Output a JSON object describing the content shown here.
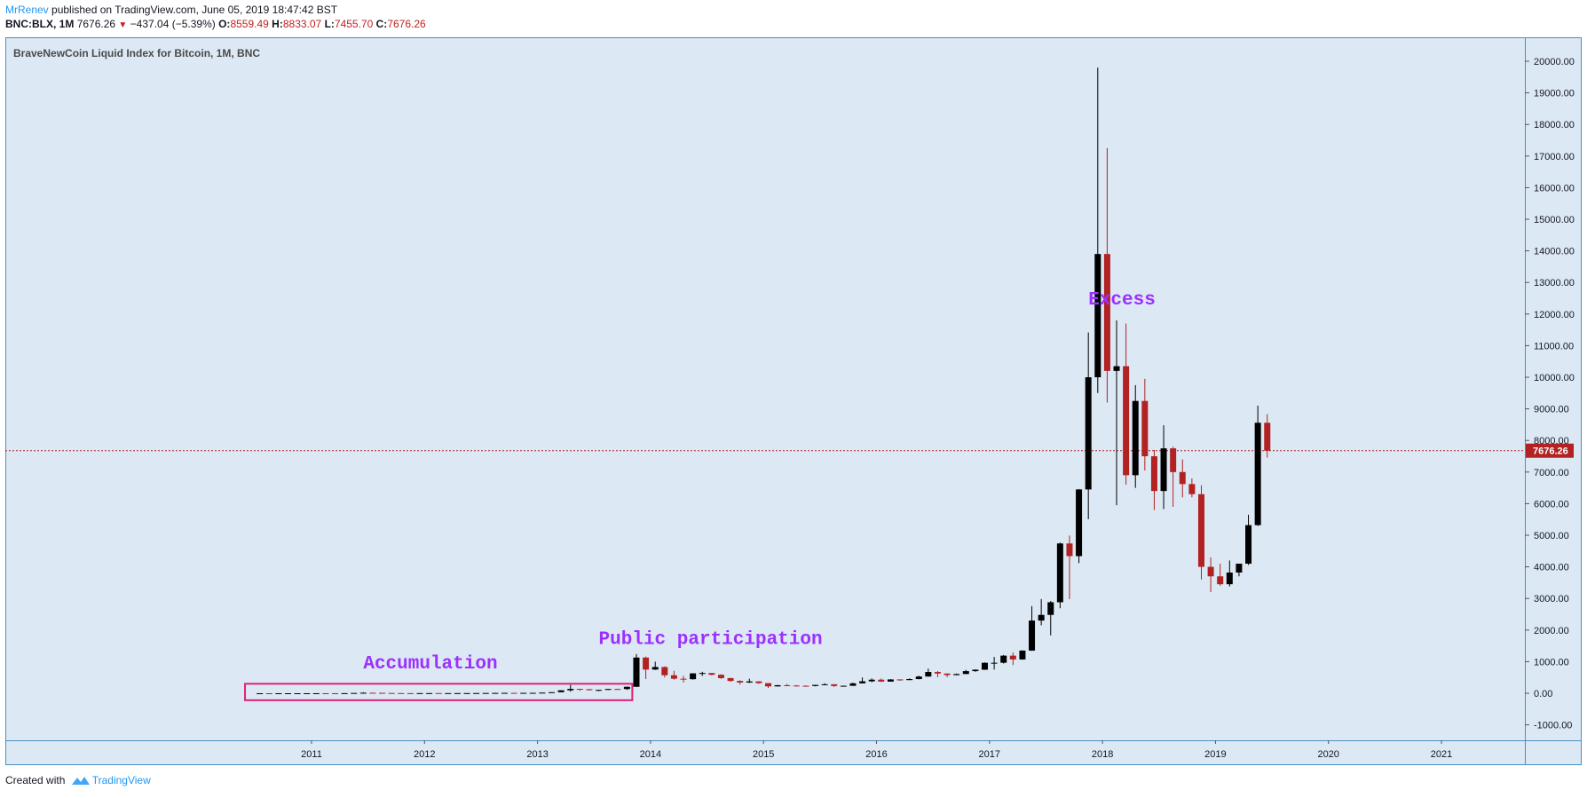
{
  "header": {
    "author": "MrRenev",
    "published": "published on TradingView.com, June 05, 2019 18:47:42 BST",
    "symbol": "BNC:BLX, 1M",
    "last": "7676.26",
    "arrow": "▼",
    "change": "−437.04 (−5.39%)",
    "o_label": "O:",
    "o": "8559.49",
    "h_label": "H:",
    "h": "8833.07",
    "l_label": "L:",
    "l": "7455.70",
    "c_label": "C:",
    "c": "7676.26"
  },
  "footer": {
    "created": "Created with",
    "brand": "TradingView"
  },
  "colors": {
    "background": "#dce8f4",
    "border": "#4a90c2",
    "up": "#000000",
    "down": "#b22222",
    "price_line": "#b22222",
    "annotation": "#9b30ff",
    "box": "#e0207a"
  },
  "chart_data": {
    "type": "candlestick",
    "title": "BraveNewCoin Liquid Index for Bitcoin, 1M, BNC",
    "ylim": [
      -1500,
      20500
    ],
    "y_ticks": [
      -1000,
      0,
      1000,
      2000,
      3000,
      4000,
      5000,
      6000,
      7000,
      8000,
      9000,
      10000,
      11000,
      12000,
      13000,
      14000,
      15000,
      16000,
      17000,
      18000,
      19000,
      20000
    ],
    "x_ticks": [
      "2011",
      "2012",
      "2013",
      "2014",
      "2015",
      "2016",
      "2017",
      "2018",
      "2019",
      "2020",
      "2021"
    ],
    "last_price": 7676.26,
    "last_price_label": "7676.26",
    "candles": [
      {
        "t": "2010-07",
        "o": 0.05,
        "h": 0.1,
        "l": 0.05,
        "c": 0.07
      },
      {
        "t": "2010-08",
        "o": 0.07,
        "h": 0.1,
        "l": 0.06,
        "c": 0.06
      },
      {
        "t": "2010-09",
        "o": 0.06,
        "h": 0.2,
        "l": 0.06,
        "c": 0.06
      },
      {
        "t": "2010-10",
        "o": 0.06,
        "h": 0.2,
        "l": 0.06,
        "c": 0.19
      },
      {
        "t": "2010-11",
        "o": 0.19,
        "h": 0.5,
        "l": 0.19,
        "c": 0.21
      },
      {
        "t": "2010-12",
        "o": 0.21,
        "h": 0.3,
        "l": 0.2,
        "c": 0.3
      },
      {
        "t": "2011-01",
        "o": 0.3,
        "h": 0.95,
        "l": 0.3,
        "c": 0.9
      },
      {
        "t": "2011-02",
        "o": 0.9,
        "h": 1.1,
        "l": 0.8,
        "c": 0.86
      },
      {
        "t": "2011-03",
        "o": 0.86,
        "h": 0.95,
        "l": 0.7,
        "c": 0.78
      },
      {
        "t": "2011-04",
        "o": 0.78,
        "h": 4,
        "l": 0.7,
        "c": 3.5
      },
      {
        "t": "2011-05",
        "o": 3.5,
        "h": 9,
        "l": 3,
        "c": 8.7
      },
      {
        "t": "2011-06",
        "o": 8.7,
        "h": 31,
        "l": 8,
        "c": 16
      },
      {
        "t": "2011-07",
        "o": 16,
        "h": 16,
        "l": 12,
        "c": 13.4
      },
      {
        "t": "2011-08",
        "o": 13.4,
        "h": 13.5,
        "l": 7,
        "c": 8.2
      },
      {
        "t": "2011-09",
        "o": 8.2,
        "h": 8.5,
        "l": 4.5,
        "c": 5.1
      },
      {
        "t": "2011-10",
        "o": 5.1,
        "h": 5.1,
        "l": 2,
        "c": 3.2
      },
      {
        "t": "2011-11",
        "o": 3.2,
        "h": 3.3,
        "l": 2,
        "c": 3.0
      },
      {
        "t": "2011-12",
        "o": 3.0,
        "h": 4.8,
        "l": 2.8,
        "c": 4.7
      },
      {
        "t": "2012-01",
        "o": 4.7,
        "h": 7.4,
        "l": 4.5,
        "c": 5.5
      },
      {
        "t": "2012-02",
        "o": 5.5,
        "h": 6.3,
        "l": 4.2,
        "c": 4.9
      },
      {
        "t": "2012-03",
        "o": 4.9,
        "h": 5.4,
        "l": 4.6,
        "c": 4.9
      },
      {
        "t": "2012-04",
        "o": 4.9,
        "h": 5.2,
        "l": 4.7,
        "c": 5.0
      },
      {
        "t": "2012-05",
        "o": 5.0,
        "h": 5.2,
        "l": 4.9,
        "c": 5.2
      },
      {
        "t": "2012-06",
        "o": 5.2,
        "h": 6.7,
        "l": 5.1,
        "c": 6.7
      },
      {
        "t": "2012-07",
        "o": 6.7,
        "h": 9.6,
        "l": 6.5,
        "c": 9.3
      },
      {
        "t": "2012-08",
        "o": 9.3,
        "h": 16,
        "l": 7.1,
        "c": 10.1
      },
      {
        "t": "2012-09",
        "o": 10.1,
        "h": 12.9,
        "l": 10,
        "c": 12.4
      },
      {
        "t": "2012-10",
        "o": 12.4,
        "h": 12.6,
        "l": 9.8,
        "c": 11.2
      },
      {
        "t": "2012-11",
        "o": 11.2,
        "h": 12.6,
        "l": 10.3,
        "c": 12.6
      },
      {
        "t": "2012-12",
        "o": 12.6,
        "h": 13.7,
        "l": 12.5,
        "c": 13.5
      },
      {
        "t": "2013-01",
        "o": 13.5,
        "h": 20.5,
        "l": 13.2,
        "c": 20.4
      },
      {
        "t": "2013-02",
        "o": 20.4,
        "h": 33.5,
        "l": 19.5,
        "c": 33.4
      },
      {
        "t": "2013-03",
        "o": 33.4,
        "h": 95,
        "l": 33,
        "c": 93
      },
      {
        "t": "2013-04",
        "o": 93,
        "h": 266,
        "l": 50,
        "c": 139
      },
      {
        "t": "2013-05",
        "o": 139,
        "h": 139,
        "l": 79,
        "c": 128
      },
      {
        "t": "2013-06",
        "o": 128,
        "h": 130,
        "l": 88,
        "c": 97
      },
      {
        "t": "2013-07",
        "o": 97,
        "h": 110,
        "l": 65,
        "c": 106
      },
      {
        "t": "2013-08",
        "o": 106,
        "h": 135,
        "l": 100,
        "c": 135
      },
      {
        "t": "2013-09",
        "o": 135,
        "h": 145,
        "l": 118,
        "c": 133
      },
      {
        "t": "2013-10",
        "o": 133,
        "h": 215,
        "l": 104,
        "c": 204
      },
      {
        "t": "2013-11",
        "o": 204,
        "h": 1240,
        "l": 200,
        "c": 1130
      },
      {
        "t": "2013-12",
        "o": 1130,
        "h": 1160,
        "l": 450,
        "c": 750
      },
      {
        "t": "2014-01",
        "o": 750,
        "h": 1000,
        "l": 740,
        "c": 830
      },
      {
        "t": "2014-02",
        "o": 830,
        "h": 850,
        "l": 500,
        "c": 570
      },
      {
        "t": "2014-03",
        "o": 570,
        "h": 710,
        "l": 430,
        "c": 460
      },
      {
        "t": "2014-04",
        "o": 460,
        "h": 550,
        "l": 340,
        "c": 445
      },
      {
        "t": "2014-05",
        "o": 445,
        "h": 630,
        "l": 430,
        "c": 630
      },
      {
        "t": "2014-06",
        "o": 630,
        "h": 680,
        "l": 550,
        "c": 640
      },
      {
        "t": "2014-07",
        "o": 640,
        "h": 645,
        "l": 565,
        "c": 585
      },
      {
        "t": "2014-08",
        "o": 585,
        "h": 600,
        "l": 455,
        "c": 480
      },
      {
        "t": "2014-09",
        "o": 480,
        "h": 490,
        "l": 360,
        "c": 390
      },
      {
        "t": "2014-10",
        "o": 390,
        "h": 410,
        "l": 275,
        "c": 340
      },
      {
        "t": "2014-11",
        "o": 340,
        "h": 460,
        "l": 325,
        "c": 375
      },
      {
        "t": "2014-12",
        "o": 375,
        "h": 380,
        "l": 300,
        "c": 320
      },
      {
        "t": "2015-01",
        "o": 320,
        "h": 320,
        "l": 170,
        "c": 217
      },
      {
        "t": "2015-02",
        "o": 217,
        "h": 265,
        "l": 210,
        "c": 254
      },
      {
        "t": "2015-03",
        "o": 254,
        "h": 300,
        "l": 235,
        "c": 244
      },
      {
        "t": "2015-04",
        "o": 244,
        "h": 260,
        "l": 215,
        "c": 236
      },
      {
        "t": "2015-05",
        "o": 236,
        "h": 248,
        "l": 226,
        "c": 230
      },
      {
        "t": "2015-06",
        "o": 230,
        "h": 268,
        "l": 218,
        "c": 264
      },
      {
        "t": "2015-07",
        "o": 264,
        "h": 315,
        "l": 252,
        "c": 284
      },
      {
        "t": "2015-08",
        "o": 284,
        "h": 285,
        "l": 198,
        "c": 230
      },
      {
        "t": "2015-09",
        "o": 230,
        "h": 245,
        "l": 224,
        "c": 236
      },
      {
        "t": "2015-10",
        "o": 236,
        "h": 335,
        "l": 235,
        "c": 314
      },
      {
        "t": "2015-11",
        "o": 314,
        "h": 500,
        "l": 310,
        "c": 378
      },
      {
        "t": "2015-12",
        "o": 378,
        "h": 470,
        "l": 350,
        "c": 430
      },
      {
        "t": "2016-01",
        "o": 430,
        "h": 465,
        "l": 355,
        "c": 369
      },
      {
        "t": "2016-02",
        "o": 369,
        "h": 445,
        "l": 365,
        "c": 437
      },
      {
        "t": "2016-03",
        "o": 437,
        "h": 440,
        "l": 395,
        "c": 416
      },
      {
        "t": "2016-04",
        "o": 416,
        "h": 470,
        "l": 415,
        "c": 448
      },
      {
        "t": "2016-05",
        "o": 448,
        "h": 555,
        "l": 440,
        "c": 530
      },
      {
        "t": "2016-06",
        "o": 530,
        "h": 780,
        "l": 525,
        "c": 673
      },
      {
        "t": "2016-07",
        "o": 673,
        "h": 705,
        "l": 510,
        "c": 624
      },
      {
        "t": "2016-08",
        "o": 624,
        "h": 625,
        "l": 510,
        "c": 575
      },
      {
        "t": "2016-09",
        "o": 575,
        "h": 625,
        "l": 570,
        "c": 609
      },
      {
        "t": "2016-10",
        "o": 609,
        "h": 740,
        "l": 605,
        "c": 700
      },
      {
        "t": "2016-11",
        "o": 700,
        "h": 755,
        "l": 680,
        "c": 745
      },
      {
        "t": "2016-12",
        "o": 745,
        "h": 975,
        "l": 740,
        "c": 964
      },
      {
        "t": "2017-01",
        "o": 964,
        "h": 1150,
        "l": 750,
        "c": 965
      },
      {
        "t": "2017-02",
        "o": 965,
        "h": 1210,
        "l": 940,
        "c": 1190
      },
      {
        "t": "2017-03",
        "o": 1190,
        "h": 1290,
        "l": 890,
        "c": 1070
      },
      {
        "t": "2017-04",
        "o": 1070,
        "h": 1360,
        "l": 1060,
        "c": 1350
      },
      {
        "t": "2017-05",
        "o": 1350,
        "h": 2760,
        "l": 1340,
        "c": 2300
      },
      {
        "t": "2017-06",
        "o": 2300,
        "h": 2980,
        "l": 2150,
        "c": 2480
      },
      {
        "t": "2017-07",
        "o": 2480,
        "h": 2920,
        "l": 1830,
        "c": 2880
      },
      {
        "t": "2017-08",
        "o": 2880,
        "h": 4770,
        "l": 2690,
        "c": 4740
      },
      {
        "t": "2017-09",
        "o": 4740,
        "h": 4990,
        "l": 2980,
        "c": 4340
      },
      {
        "t": "2017-10",
        "o": 4340,
        "h": 6460,
        "l": 4120,
        "c": 6450
      },
      {
        "t": "2017-11",
        "o": 6450,
        "h": 11420,
        "l": 5510,
        "c": 10000
      },
      {
        "t": "2017-12",
        "o": 10000,
        "h": 19800,
        "l": 9500,
        "c": 13900
      },
      {
        "t": "2018-01",
        "o": 13900,
        "h": 17250,
        "l": 9200,
        "c": 10200
      },
      {
        "t": "2018-02",
        "o": 10200,
        "h": 11800,
        "l": 5950,
        "c": 10350
      },
      {
        "t": "2018-03",
        "o": 10350,
        "h": 11700,
        "l": 6600,
        "c": 6900
      },
      {
        "t": "2018-04",
        "o": 6900,
        "h": 9750,
        "l": 6500,
        "c": 9250
      },
      {
        "t": "2018-05",
        "o": 9250,
        "h": 9950,
        "l": 7050,
        "c": 7500
      },
      {
        "t": "2018-06",
        "o": 7500,
        "h": 7700,
        "l": 5800,
        "c": 6400
      },
      {
        "t": "2018-07",
        "o": 6400,
        "h": 8480,
        "l": 5830,
        "c": 7750
      },
      {
        "t": "2018-08",
        "o": 7750,
        "h": 7800,
        "l": 5900,
        "c": 7000
      },
      {
        "t": "2018-09",
        "o": 7000,
        "h": 7400,
        "l": 6200,
        "c": 6620
      },
      {
        "t": "2018-10",
        "o": 6620,
        "h": 6800,
        "l": 6200,
        "c": 6300
      },
      {
        "t": "2018-11",
        "o": 6300,
        "h": 6580,
        "l": 3600,
        "c": 4000
      },
      {
        "t": "2018-12",
        "o": 4000,
        "h": 4300,
        "l": 3200,
        "c": 3700
      },
      {
        "t": "2019-01",
        "o": 3700,
        "h": 4100,
        "l": 3400,
        "c": 3450
      },
      {
        "t": "2019-02",
        "o": 3450,
        "h": 4200,
        "l": 3380,
        "c": 3820
      },
      {
        "t": "2019-03",
        "o": 3820,
        "h": 4100,
        "l": 3700,
        "c": 4100
      },
      {
        "t": "2019-04",
        "o": 4100,
        "h": 5650,
        "l": 4060,
        "c": 5320
      },
      {
        "t": "2019-05",
        "o": 5320,
        "h": 9100,
        "l": 5300,
        "c": 8560
      },
      {
        "t": "2019-06",
        "o": 8559.49,
        "h": 8833.07,
        "l": 7455.7,
        "c": 7676.26
      }
    ],
    "annotations": [
      {
        "text": "Accumulation",
        "t": "2011-06",
        "y": 780
      },
      {
        "text": "Public participation",
        "t": "2013-07",
        "y": 1560
      },
      {
        "text": "Excess",
        "t": "2017-11",
        "y": 12300
      }
    ],
    "highlight_box": {
      "t_start": "2010-06",
      "t_end": "2013-10",
      "y_low": -220,
      "y_high": 300
    }
  }
}
